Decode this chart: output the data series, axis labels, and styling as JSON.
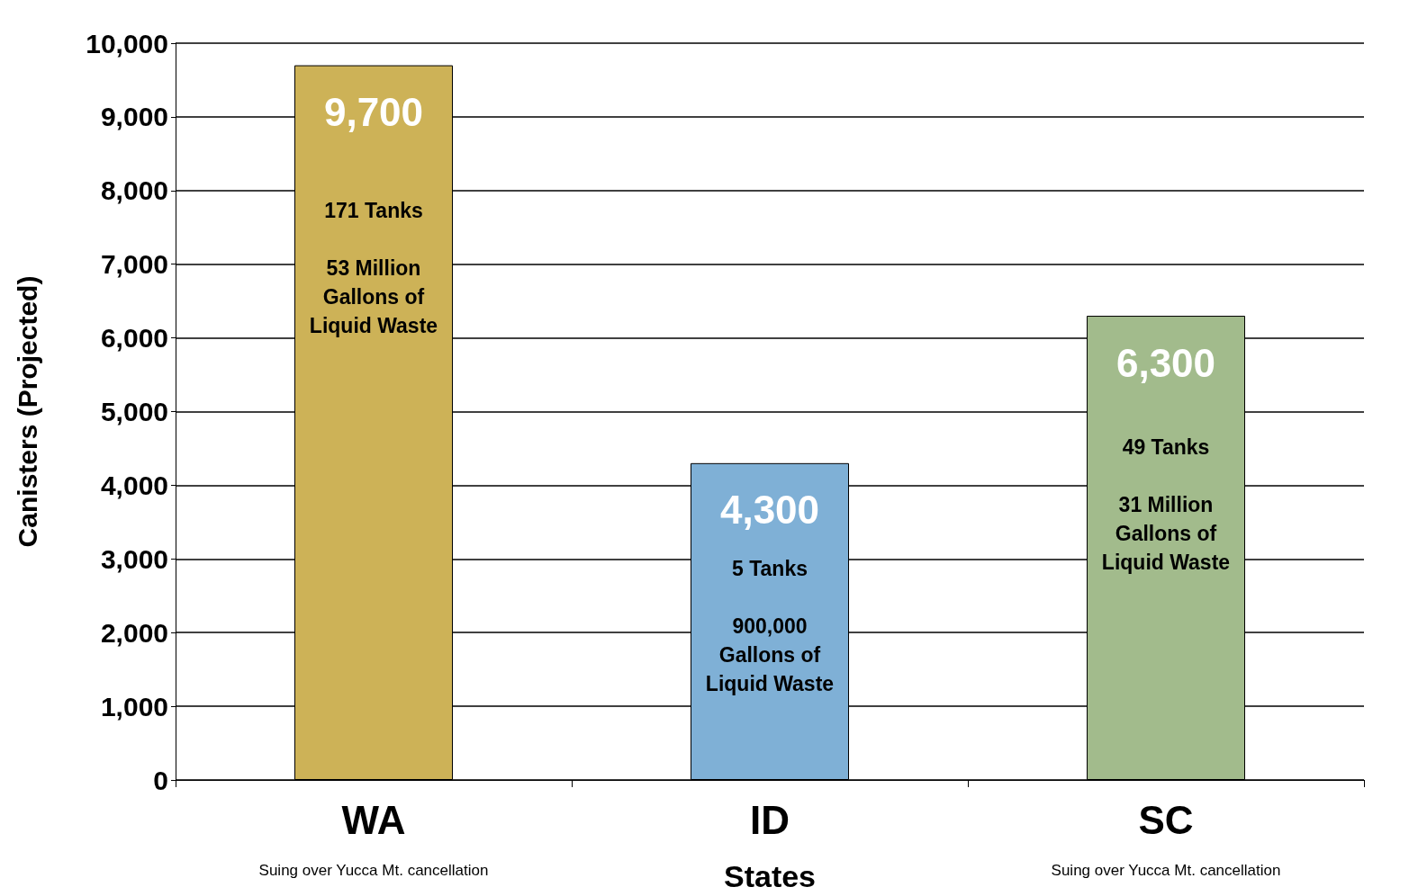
{
  "chart_data": {
    "type": "bar",
    "xlabel": "States",
    "ylabel": "Canisters (Projected)",
    "categories": [
      "WA",
      "ID",
      "SC"
    ],
    "values": [
      9700,
      4300,
      6300
    ],
    "colors": [
      "#cdb257",
      "#7fb0d6",
      "#a2bb8c"
    ],
    "value_labels": [
      "9,700",
      "4,300",
      "6,300"
    ],
    "ylim": [
      0,
      10000
    ],
    "yticks": [
      0,
      {
        "value": 1000,
        "label": "1,000"
      },
      {
        "value": 2000,
        "label": "2,000"
      },
      {
        "value": 3000,
        "label": "3,000"
      },
      {
        "value": 4000,
        "label": "4,000"
      },
      {
        "value": 5000,
        "label": "5,000"
      },
      {
        "value": 6000,
        "label": "6,000"
      },
      {
        "value": 7000,
        "label": "7,000"
      },
      {
        "value": 8000,
        "label": "8,000"
      },
      {
        "value": 9000,
        "label": "9,000"
      },
      {
        "value": 10000,
        "label": "10,000"
      }
    ],
    "grid": "y",
    "annotations": [
      "171 Tanks",
      "53 Million Gallons of Liquid Waste",
      "5 Tanks",
      "900,000 Gallons of Liquid Waste",
      "49 Tanks",
      "31 Million Gallons of Liquid Waste",
      "Suing over Yucca Mt. cancellation",
      "Suing over Yucca Mt. cancellation"
    ]
  }
}
